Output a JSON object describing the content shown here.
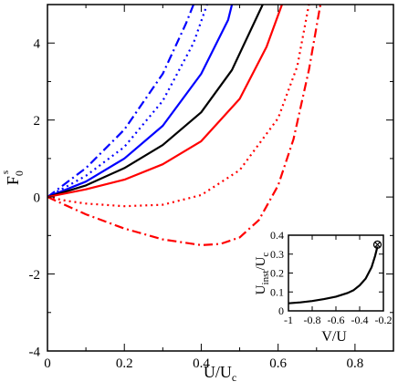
{
  "chart_data": [
    {
      "type": "line",
      "xlabel": "U/U",
      "xlabel_sub": "c",
      "ylabel": "F",
      "ylabel_sub": "0",
      "ylabel_sup": "s",
      "xlim": [
        0,
        0.9
      ],
      "ylim": [
        -4,
        5
      ],
      "xticks": [
        0,
        0.2,
        0.4,
        0.6,
        0.8
      ],
      "xtick_labels": [
        "0",
        "0.2",
        "0.4",
        "0.6",
        "0.8"
      ],
      "yticks": [
        -4,
        -2,
        0,
        2,
        4
      ],
      "ytick_labels": [
        "-4",
        "-2",
        "0",
        "2",
        "4"
      ],
      "grid": false,
      "series": [
        {
          "color": "#0000ff",
          "dash": "dashdot",
          "x": [
            0,
            0.1,
            0.2,
            0.3,
            0.36,
            0.38
          ],
          "y": [
            0,
            0.75,
            1.75,
            3.2,
            4.5,
            5.0
          ]
        },
        {
          "color": "#0000ff",
          "dash": "dot",
          "x": [
            0,
            0.1,
            0.2,
            0.3,
            0.38,
            0.415
          ],
          "y": [
            0,
            0.55,
            1.3,
            2.5,
            4.0,
            5.0
          ]
        },
        {
          "color": "#0000ff",
          "dash": "solid",
          "x": [
            0,
            0.1,
            0.2,
            0.3,
            0.4,
            0.47,
            0.48
          ],
          "y": [
            0,
            0.4,
            1.0,
            1.85,
            3.2,
            4.6,
            5.0
          ]
        },
        {
          "color": "#000000",
          "dash": "solid",
          "x": [
            0,
            0.1,
            0.2,
            0.3,
            0.4,
            0.48,
            0.56
          ],
          "y": [
            0,
            0.3,
            0.75,
            1.35,
            2.2,
            3.3,
            5.0
          ]
        },
        {
          "color": "#ff0000",
          "dash": "solid",
          "x": [
            0,
            0.1,
            0.2,
            0.3,
            0.4,
            0.5,
            0.57,
            0.61
          ],
          "y": [
            0,
            0.2,
            0.45,
            0.85,
            1.45,
            2.55,
            3.9,
            5.0
          ]
        },
        {
          "color": "#ff0000",
          "dash": "dot",
          "x": [
            0,
            0.05,
            0.1,
            0.2,
            0.3,
            0.4,
            0.5,
            0.6,
            0.65,
            0.68
          ],
          "y": [
            0,
            -0.1,
            -0.17,
            -0.24,
            -0.2,
            0.05,
            0.7,
            2.05,
            3.4,
            5.0
          ]
        },
        {
          "color": "#ff0000",
          "dash": "dashdot",
          "x": [
            0,
            0.1,
            0.2,
            0.3,
            0.4,
            0.45,
            0.5,
            0.55,
            0.6,
            0.64,
            0.68,
            0.71
          ],
          "y": [
            0,
            -0.45,
            -0.82,
            -1.1,
            -1.25,
            -1.22,
            -1.05,
            -0.6,
            0.3,
            1.5,
            3.3,
            5.0
          ]
        }
      ]
    },
    {
      "type": "line",
      "inset": true,
      "xlabel": "V/U",
      "ylabel": "U",
      "ylabel_sub": "inst",
      "ylabel_tail": "/U",
      "ylabel_tail_sub": "c",
      "xlim": [
        -1,
        -0.2
      ],
      "ylim": [
        0,
        0.4
      ],
      "xticks": [
        -1,
        -0.8,
        -0.6,
        -0.4,
        -0.2
      ],
      "xtick_labels": [
        "-1",
        "-0.8",
        "-0.6",
        "-0.4",
        "-0.2"
      ],
      "yticks": [
        0,
        0.1,
        0.2,
        0.3,
        0.4
      ],
      "ytick_labels": [
        "0",
        "0.1",
        "0.2",
        "0.3",
        "0.4"
      ],
      "series": [
        {
          "color": "#000000",
          "dash": "solid",
          "x": [
            -1,
            -0.9,
            -0.8,
            -0.7,
            -0.6,
            -0.5,
            -0.45,
            -0.4,
            -0.35,
            -0.3,
            -0.27,
            -0.25
          ],
          "y": [
            0.04,
            0.045,
            0.052,
            0.062,
            0.075,
            0.095,
            0.11,
            0.135,
            0.17,
            0.23,
            0.29,
            0.34
          ]
        }
      ],
      "marker": {
        "x": -0.25,
        "y": 0.35,
        "symbol": "circled-x"
      }
    }
  ]
}
